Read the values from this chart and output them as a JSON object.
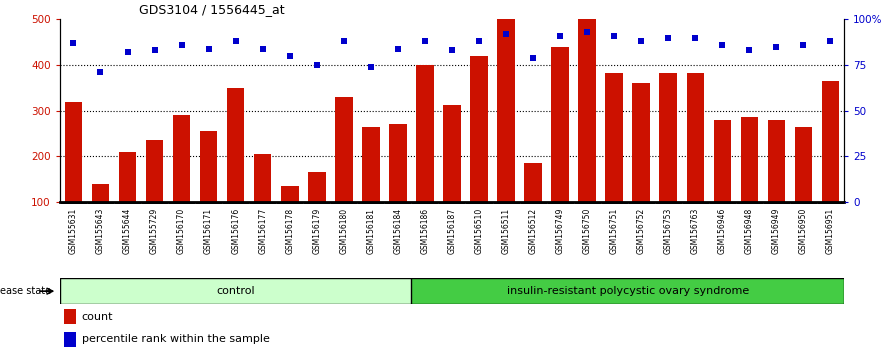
{
  "title": "GDS3104 / 1556445_at",
  "samples": [
    "GSM155631",
    "GSM155643",
    "GSM155644",
    "GSM155729",
    "GSM156170",
    "GSM156171",
    "GSM156176",
    "GSM156177",
    "GSM156178",
    "GSM156179",
    "GSM156180",
    "GSM156181",
    "GSM156184",
    "GSM156186",
    "GSM156187",
    "GSM156510",
    "GSM156511",
    "GSM156512",
    "GSM156749",
    "GSM156750",
    "GSM156751",
    "GSM156752",
    "GSM156753",
    "GSM156763",
    "GSM156946",
    "GSM156948",
    "GSM156949",
    "GSM156950",
    "GSM156951"
  ],
  "bar_values": [
    320,
    140,
    210,
    235,
    290,
    255,
    350,
    205,
    135,
    165,
    330,
    265,
    270,
    400,
    313,
    420,
    500,
    185,
    440,
    500,
    383,
    360,
    383,
    383,
    280,
    285,
    280,
    265,
    365
  ],
  "dot_values": [
    87,
    71,
    82,
    83,
    86,
    84,
    88,
    84,
    80,
    75,
    88,
    74,
    84,
    88,
    83,
    88,
    92,
    79,
    91,
    93,
    91,
    88,
    90,
    90,
    86,
    83,
    85,
    86,
    88
  ],
  "control_count": 13,
  "bar_color": "#cc1100",
  "dot_color": "#0000cc",
  "control_label": "control",
  "disease_label": "insulin-resistant polycystic ovary syndrome",
  "control_bg": "#ccffcc",
  "disease_bg": "#44cc44",
  "xtick_bg": "#d0d0d0",
  "ylim_left": [
    100,
    500
  ],
  "ylim_right": [
    0,
    100
  ],
  "yticks_left": [
    100,
    200,
    300,
    400,
    500
  ],
  "yticks_right": [
    0,
    25,
    50,
    75,
    100
  ],
  "ytick_labels_right": [
    "0",
    "25",
    "50",
    "75",
    "100%"
  ],
  "grid_lines": [
    200,
    300,
    400
  ],
  "legend_count_label": "count",
  "legend_pct_label": "percentile rank within the sample",
  "disease_state_label": "disease state"
}
